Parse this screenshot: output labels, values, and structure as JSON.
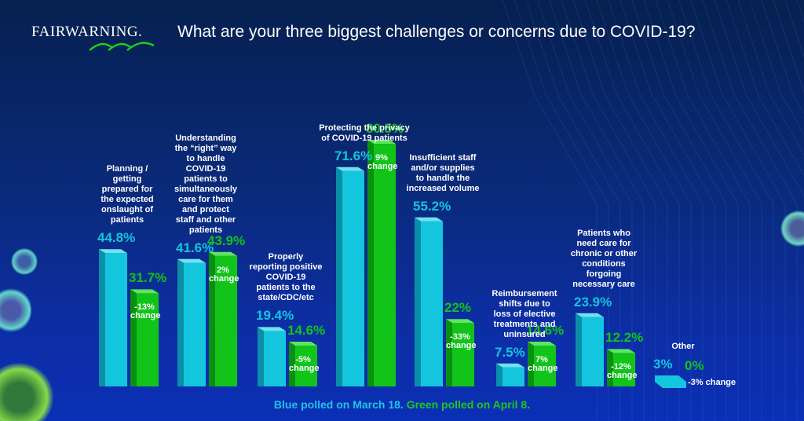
{
  "brand": {
    "logo_text": "FAIRWARNING."
  },
  "colors": {
    "blue": "#13c6de",
    "blue_dark": "#0b8fa8",
    "blue_top": "#6fe2f2",
    "green": "#12c41a",
    "green_dark": "#0a9010",
    "green_top": "#5ee65e",
    "white": "#ffffff"
  },
  "footer": {
    "blue_text": "Blue polled on March 18.",
    "green_text": "Green polled on April 8."
  },
  "chart_data": {
    "type": "bar",
    "title": "What are your three biggest challenges or concerns due to COVID-19?",
    "xlabel": "",
    "ylabel": "",
    "ylim": [
      0,
      100
    ],
    "grid": false,
    "legend": "bottom",
    "categories": [
      "Planning /\ngetting\nprepared for\nthe expected\nonslaught of\npatients",
      "Understanding\nthe “right” way\nto handle\nCOVID-19\npatients to\nsimultaneously\ncare for them\nand protect\nstaff and other\npatients",
      "Properly\nreporting positive\nCOVID-19\npatients to the\nstate/CDC/etc",
      "Protecting the privacy\nof COVID-19 patients",
      "Insufficient staff\nand/or supplies\nto handle the\nincreased volume",
      "Reimbursement\nshifts due to\nloss of elective\ntreatments and\nuninsured",
      "Patients who\nneed care for\nchronic or other\nconditions\nforgoing\nnecessary care",
      "Other"
    ],
    "series": [
      {
        "name": "Blue polled on March 18",
        "values": [
          44.8,
          41.6,
          19.4,
          71.6,
          55.2,
          7.5,
          23.9,
          3
        ],
        "labels": [
          "44.8%",
          "41.6%",
          "19.4%",
          "71.6%",
          "55.2%",
          "7.5%",
          "23.9%",
          "3%"
        ]
      },
      {
        "name": "Green polled on April 8",
        "values": [
          31.7,
          43.9,
          14.6,
          80.5,
          22,
          14.6,
          12.2,
          0
        ],
        "labels": [
          "31.7%",
          "43.9%",
          "14.6%",
          "80.5%",
          "22%",
          "14.6%",
          "12.2%",
          "0%"
        ]
      }
    ],
    "change_labels": [
      "-13%\nchange",
      "2%\nchange",
      "-5%\nchange",
      "9%\nchange",
      "-33%\nchange",
      "7%\nchange",
      "-12%\nchange",
      "-3% change"
    ]
  }
}
